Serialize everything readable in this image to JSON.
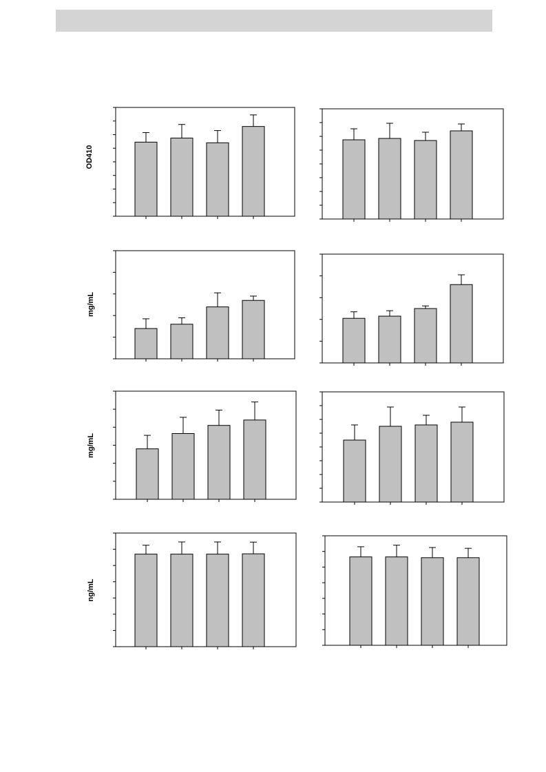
{
  "page": {
    "header_text": ""
  },
  "chart_data": [
    {
      "type": "bar",
      "row": 1,
      "col": 1,
      "ylabel": "OD410",
      "n_ticks": 8,
      "ylim": [
        0,
        8
      ],
      "values": [
        5.45,
        5.75,
        5.4,
        6.6
      ],
      "errors": [
        0.7,
        1.0,
        0.9,
        0.85
      ]
    },
    {
      "type": "bar",
      "row": 1,
      "col": 2,
      "ylabel": "",
      "n_ticks": 8,
      "ylim": [
        0,
        8
      ],
      "values": [
        5.75,
        5.85,
        5.7,
        6.4
      ],
      "errors": [
        0.8,
        1.1,
        0.6,
        0.5
      ]
    },
    {
      "type": "bar",
      "row": 2,
      "col": 1,
      "ylabel": "mg/mL",
      "n_ticks": 5,
      "ylim": [
        0,
        5
      ],
      "values": [
        1.4,
        1.6,
        2.4,
        2.7
      ],
      "errors": [
        0.45,
        0.3,
        0.65,
        0.2
      ]
    },
    {
      "type": "bar",
      "row": 2,
      "col": 2,
      "ylabel": "",
      "n_ticks": 5,
      "ylim": [
        0,
        5
      ],
      "values": [
        2.05,
        2.15,
        2.5,
        3.6
      ],
      "errors": [
        0.3,
        0.25,
        0.12,
        0.45
      ]
    },
    {
      "type": "bar",
      "row": 3,
      "col": 1,
      "ylabel": "mg/mL",
      "n_ticks": 6,
      "ylim": [
        0,
        6
      ],
      "values": [
        2.8,
        3.65,
        4.1,
        4.4
      ],
      "errors": [
        0.75,
        0.9,
        0.85,
        1.0
      ]
    },
    {
      "type": "bar",
      "row": 3,
      "col": 2,
      "ylabel": "",
      "n_ticks": 8,
      "ylim": [
        0,
        8
      ],
      "values": [
        4.5,
        5.5,
        5.6,
        5.8
      ],
      "errors": [
        1.1,
        1.4,
        0.7,
        1.1
      ]
    },
    {
      "type": "bar",
      "row": 4,
      "col": 1,
      "ylabel": "ng/mL",
      "n_ticks": 7,
      "ylim": [
        0,
        7
      ],
      "values": [
        5.7,
        5.7,
        5.7,
        5.72
      ],
      "errors": [
        0.55,
        0.75,
        0.75,
        0.72
      ]
    },
    {
      "type": "bar",
      "row": 4,
      "col": 2,
      "ylabel": "",
      "n_ticks": 7,
      "ylim": [
        0,
        7
      ],
      "values": [
        5.65,
        5.65,
        5.6,
        5.6
      ],
      "errors": [
        0.65,
        0.75,
        0.65,
        0.6
      ]
    }
  ],
  "style": {
    "bar_fill": "#c0c0c0",
    "stroke": "#000000"
  }
}
